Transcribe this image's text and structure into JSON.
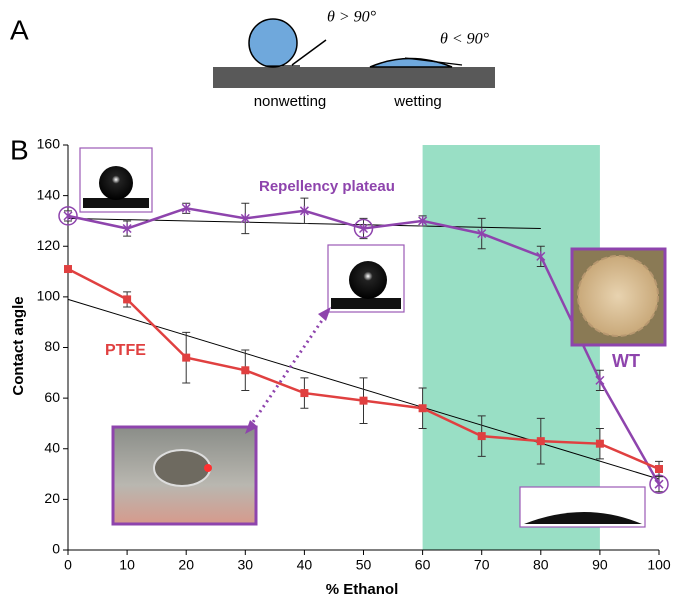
{
  "panel_a": {
    "label": "A",
    "angle_large": "θ > 90°",
    "angle_small": "θ < 90°",
    "nonwetting": "nonwetting",
    "wetting": "wetting"
  },
  "chart_data": {
    "type": "line",
    "panel_label": "B",
    "x_label": "% Ethanol",
    "y_label": "Contact angle",
    "x": [
      0,
      10,
      20,
      30,
      40,
      50,
      60,
      70,
      80,
      90,
      100
    ],
    "series": [
      {
        "name": "WT",
        "color": "#8e44ad",
        "marker": "star",
        "values": [
          132,
          127,
          135,
          131,
          134,
          127,
          130,
          125,
          116,
          67,
          26
        ],
        "errors": [
          2,
          3,
          2,
          6,
          5,
          4,
          2,
          6,
          4,
          4,
          3
        ]
      },
      {
        "name": "PTFE",
        "color": "#e04040",
        "marker": "square",
        "values": [
          111,
          99,
          76,
          71,
          62,
          59,
          56,
          45,
          43,
          42,
          32
        ],
        "errors": [
          1,
          3,
          10,
          8,
          6,
          9,
          8,
          8,
          9,
          6,
          3
        ]
      }
    ],
    "trendlines": [
      {
        "x": [
          0,
          80
        ],
        "values": [
          131,
          127
        ]
      },
      {
        "x": [
          0,
          100
        ],
        "values": [
          99,
          28
        ]
      }
    ],
    "highlight": {
      "x": [
        60,
        90
      ],
      "color": "#99dfc5"
    },
    "annotations": [
      "Repellency plateau"
    ],
    "xlim": [
      0,
      100
    ],
    "xticks": [
      0,
      10,
      20,
      30,
      40,
      50,
      60,
      70,
      80,
      90,
      100
    ],
    "ylim": [
      0,
      160
    ],
    "yticks": [
      0,
      20,
      40,
      60,
      80,
      100,
      120,
      140,
      160
    ]
  }
}
